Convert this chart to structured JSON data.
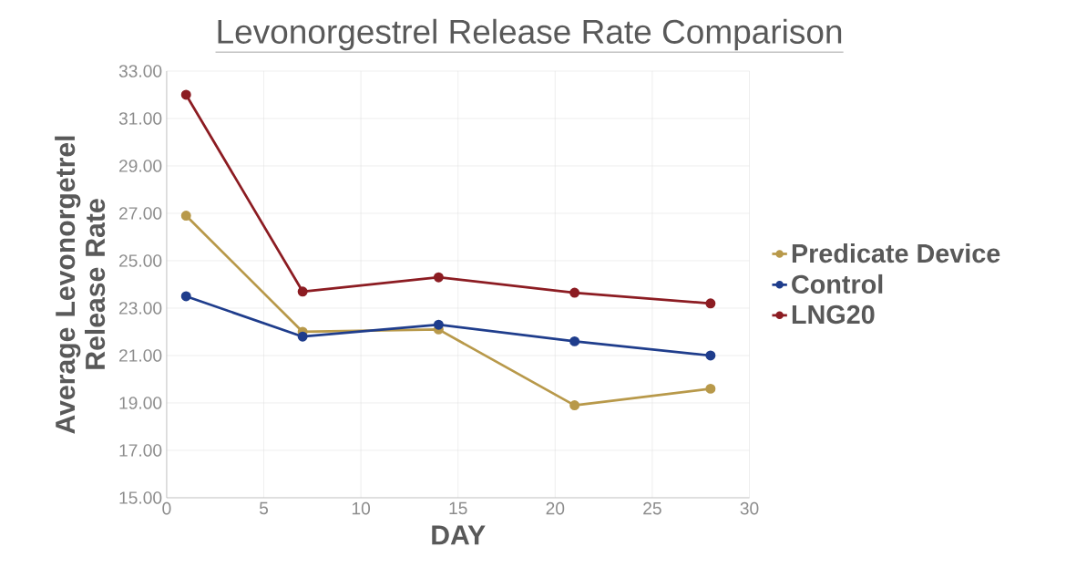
{
  "chart_data": {
    "type": "line",
    "title": "Levonorgestrel Release Rate Comparison",
    "xlabel": "DAY",
    "ylabel": "Average Levonorgetrel Release Rate",
    "x": [
      1,
      7,
      14,
      21,
      28
    ],
    "series": [
      {
        "name": "Predicate Device",
        "color": "#b8994a",
        "values": [
          26.9,
          22.0,
          22.1,
          18.9,
          19.6
        ]
      },
      {
        "name": "Control",
        "color": "#1f3d8c",
        "values": [
          23.5,
          21.8,
          22.3,
          21.6,
          21.0
        ]
      },
      {
        "name": "LNG20",
        "color": "#8c1c22",
        "values": [
          32.0,
          23.7,
          24.3,
          23.65,
          23.2
        ]
      }
    ],
    "xlim": [
      0,
      30
    ],
    "xticks": [
      0,
      5,
      10,
      15,
      20,
      25,
      30
    ],
    "ylim": [
      15,
      33
    ],
    "yticks": [
      {
        "value": 15,
        "label": "15.00"
      },
      {
        "value": 17,
        "label": "17.00"
      },
      {
        "value": 19,
        "label": "19.00"
      },
      {
        "value": 21,
        "label": "21.00"
      },
      {
        "value": 23,
        "label": "23.00"
      },
      {
        "value": 25,
        "label": "25.00"
      },
      {
        "value": 27,
        "label": "27.00"
      },
      {
        "value": 29,
        "label": "29.00"
      },
      {
        "value": 31,
        "label": "31.00"
      },
      {
        "value": 33,
        "label": "33.00"
      }
    ],
    "grid": true,
    "legend": "right",
    "marker": "circle",
    "line_style": "solid"
  }
}
